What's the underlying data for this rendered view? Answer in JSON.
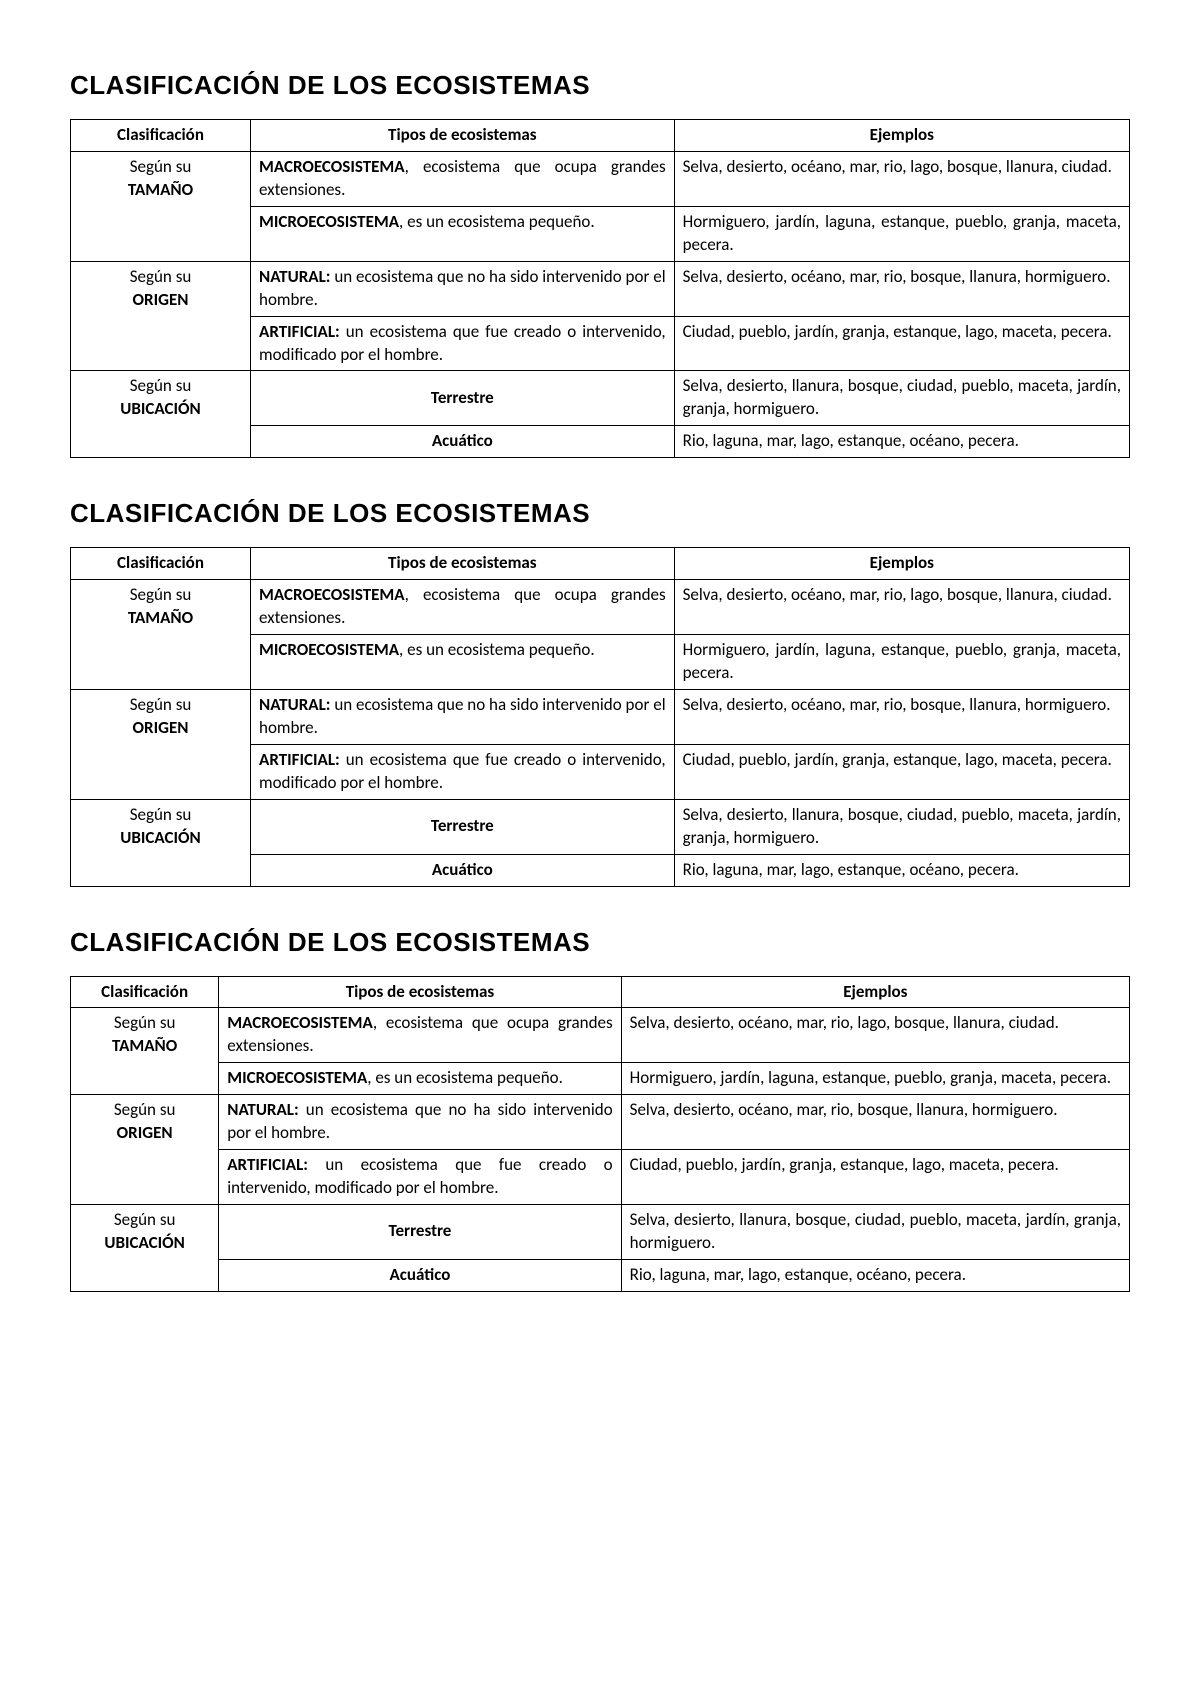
{
  "title": "CLASIFICACIÓN DE LOS ECOSISTEMAS",
  "headers": {
    "c1": "Clasificación",
    "c2": "Tipos de ecosistemas",
    "c3": "Ejemplos"
  },
  "cats": {
    "tam": {
      "l1": "Según su",
      "l2": "TAMAÑO"
    },
    "ori": {
      "l1": "Según su",
      "l2": "ORIGEN"
    },
    "ubi": {
      "l1": "Según su",
      "l2": "UBICACIÓN"
    }
  },
  "tipo": {
    "macro_b": "MACROECOSISTEMA",
    "macro_r": ", ecosistema que ocupa grandes extensiones.",
    "micro_b": "MICROECOSISTEMA",
    "micro_r": ", es un ecosistema pequeño.",
    "nat_b": "NATURAL:",
    "nat_r": " un ecosistema que no ha sido intervenido por el hombre.",
    "art_b": "ARTIFICIAL:",
    "art_r": " un ecosistema que fue creado o intervenido, modificado por el hombre.",
    "terr": "Terrestre",
    "acua": "Acuático"
  },
  "ej": {
    "macro": "Selva, desierto, océano, mar, rio, lago, bosque, llanura, ciudad.",
    "micro": "Hormiguero, jardín, laguna, estanque, pueblo, granja, maceta, pecera.",
    "nat": "Selva, desierto, océano, mar, rio, bosque, llanura, hormiguero.",
    "art": "Ciudad, pueblo, jardín, granja, estanque, lago, maceta, pecera.",
    "terr": "Selva, desierto, llanura, bosque, ciudad, pueblo, maceta, jardín, granja, hormiguero.",
    "acua": "Rio, laguna, mar, lago, estanque, océano, pecera."
  }
}
